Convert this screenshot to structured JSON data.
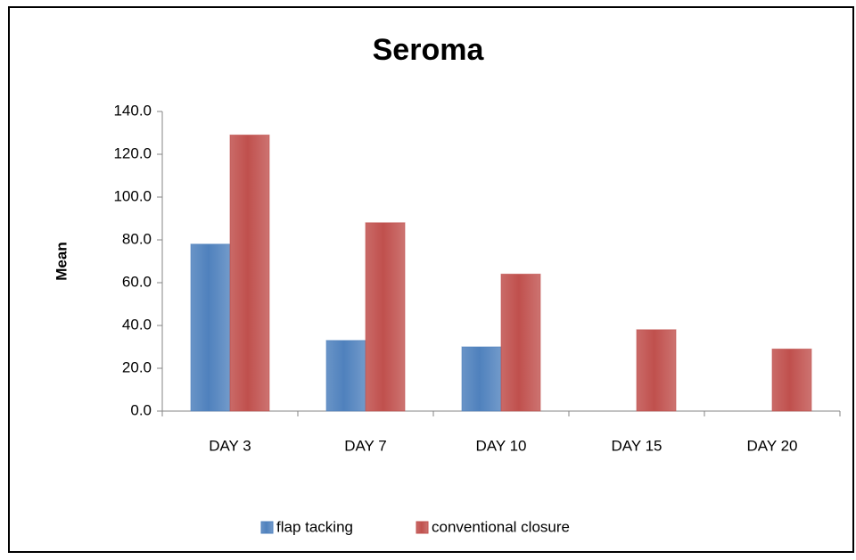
{
  "chart_data": {
    "type": "bar",
    "title": "Seroma",
    "y_label": "Mean",
    "categories": [
      "DAY 3",
      "DAY 7",
      "DAY 10",
      "DAY 15",
      "DAY 20"
    ],
    "series": [
      {
        "name": "flap tacking",
        "color": "#4f81bd",
        "values": [
          78,
          33,
          30,
          0,
          0
        ]
      },
      {
        "name": "conventional closure",
        "color": "#c0504d",
        "values": [
          129,
          88,
          64,
          38,
          29
        ]
      }
    ],
    "ylim": [
      0,
      140
    ],
    "yticks": [
      {
        "value": 0,
        "label": "0.0"
      },
      {
        "value": 20,
        "label": "20.0"
      },
      {
        "value": 40,
        "label": "40.0"
      },
      {
        "value": 60,
        "label": "60.0"
      },
      {
        "value": 80,
        "label": "80.0"
      },
      {
        "value": 100,
        "label": "100.0"
      },
      {
        "value": 120,
        "label": "120.0"
      },
      {
        "value": 140,
        "label": "140.0"
      }
    ],
    "grid": false,
    "legend": "bottom"
  }
}
